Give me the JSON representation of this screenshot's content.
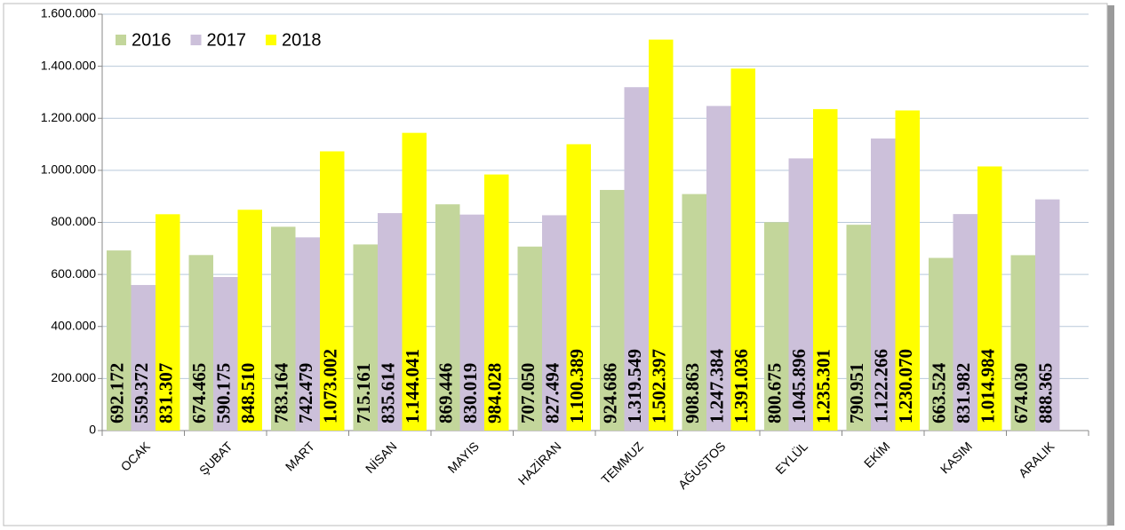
{
  "chart_data": {
    "type": "bar",
    "categories": [
      "OCAK",
      "ŞUBAT",
      "MART",
      "NİSAN",
      "MAYIS",
      "HAZİRAN",
      "TEMMUZ",
      "AĞUSTOS",
      "EYLÜL",
      "EKİM",
      "KASIM",
      "ARALIK"
    ],
    "series": [
      {
        "name": "2016",
        "color": "#c3d69b",
        "label_color": "#5f6b4e",
        "values": [
          692172,
          674465,
          783164,
          715161,
          869446,
          707050,
          924686,
          908863,
          800675,
          790951,
          663524,
          674030
        ],
        "value_labels": [
          "692.172",
          "674.465",
          "783.164",
          "715.161",
          "869.446",
          "707.050",
          "924.686",
          "908.863",
          "800.675",
          "790.951",
          "663.524",
          "674.030"
        ]
      },
      {
        "name": "2017",
        "color": "#ccc0da",
        "label_color": "#000000",
        "values": [
          559372,
          590175,
          742479,
          835614,
          830019,
          827494,
          1319549,
          1247384,
          1045896,
          1122266,
          831982,
          888365
        ],
        "value_labels": [
          "559.372",
          "590.175",
          "742.479",
          "835.614",
          "830.019",
          "827.494",
          "1.319.549",
          "1.247.384",
          "1.045.896",
          "1.122.266",
          "831.982",
          "888.365"
        ]
      },
      {
        "name": "2018",
        "color": "#ffff00",
        "label_color": "#000000",
        "values": [
          831307,
          848510,
          1073002,
          1144041,
          984028,
          1100389,
          1502397,
          1391036,
          1235301,
          1230070,
          1014984,
          null
        ],
        "value_labels": [
          "831.307",
          "848.510",
          "1.073.002",
          "1.144.041",
          "984.028",
          "1.100.389",
          "1.502.397",
          "1.391.036",
          "1.235.301",
          "1.230.070",
          "1.014.984",
          null
        ]
      }
    ],
    "ylim": [
      0,
      1600000
    ],
    "yticks": [
      0,
      {
        "value": 200000,
        "label": "200.000"
      },
      {
        "value": 400000,
        "label": "400.000"
      },
      {
        "value": 600000,
        "label": "600.000"
      },
      {
        "value": 800000,
        "label": "800.000"
      },
      {
        "value": 1000000,
        "label": "1.000.000"
      },
      {
        "value": 1200000,
        "label": "1.200.000"
      },
      {
        "value": 1400000,
        "label": "1.400.000"
      },
      {
        "value": 1600000,
        "label": "1.600.000"
      }
    ],
    "grid": true,
    "legend": "top-left"
  }
}
